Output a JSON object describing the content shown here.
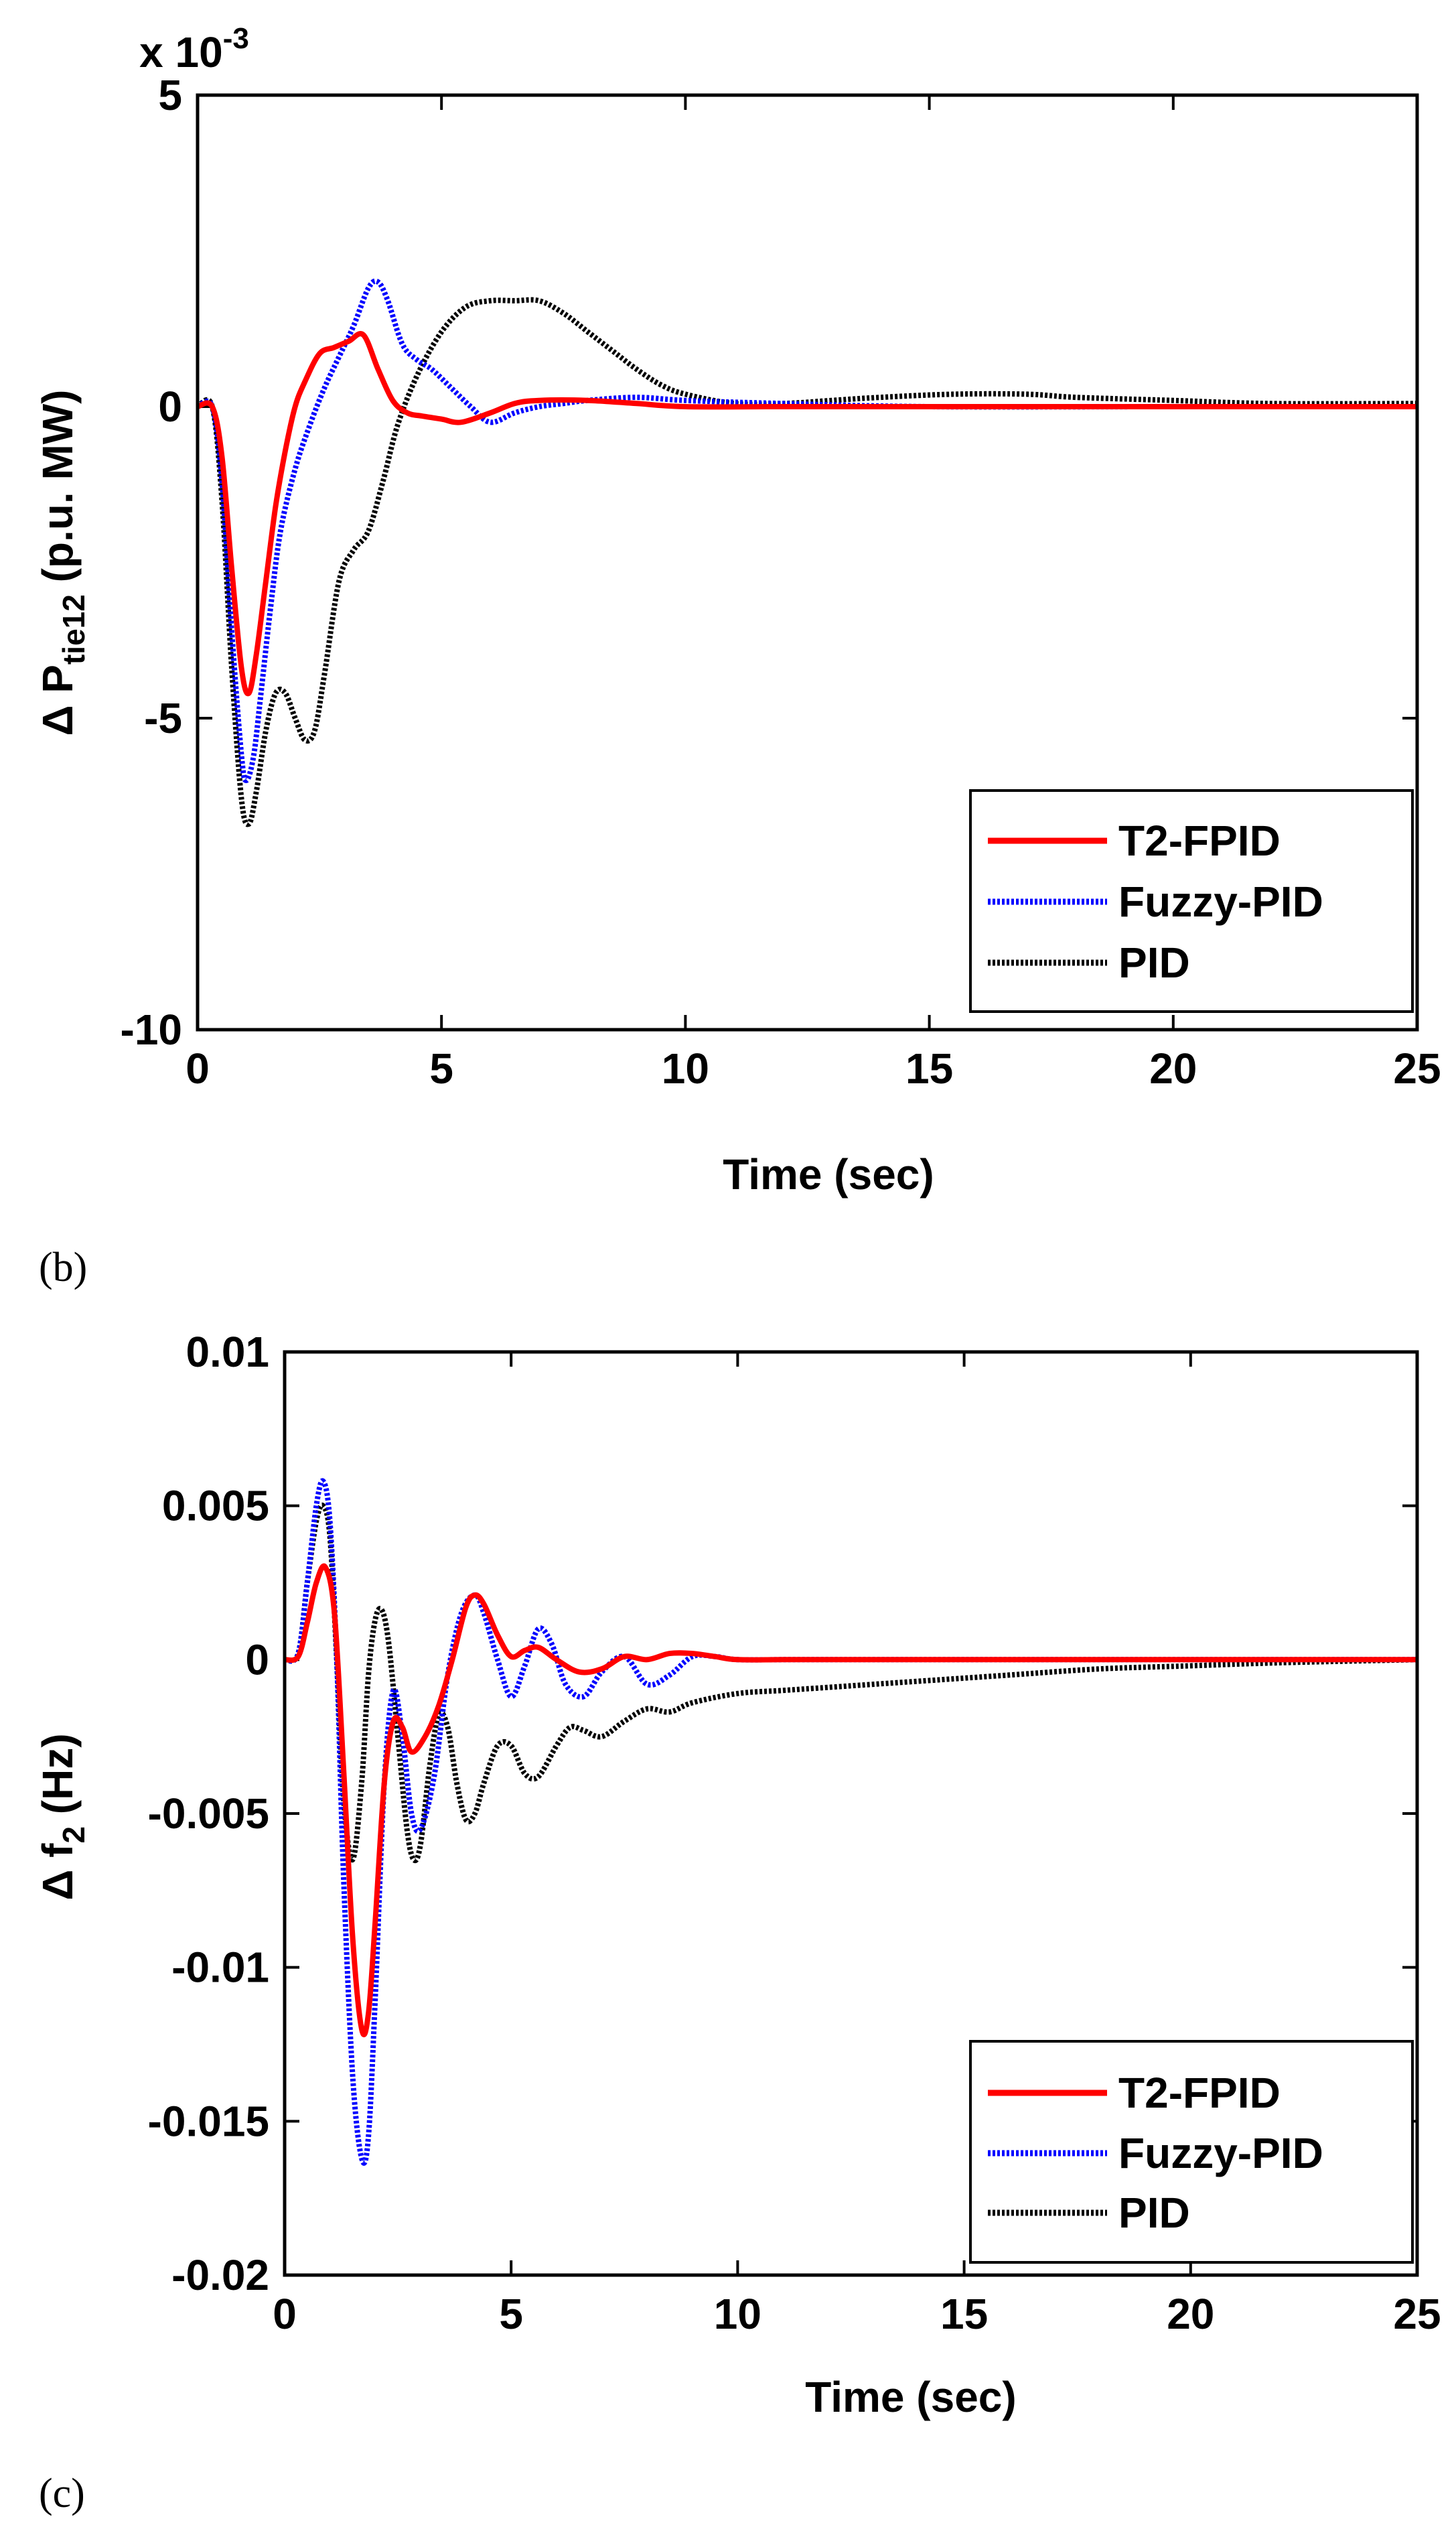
{
  "colors": {
    "t2fpid": "#ff0000",
    "fuzzy_pid": "#0000ff",
    "pid": "#000000"
  },
  "chart_data": [
    {
      "type": "line",
      "panel": "(b)",
      "caption": "(b)",
      "exponent_label": "x 10",
      "exponent_power": "-3",
      "ylabel_prefix": "Δ P",
      "ylabel_sub": "tie12",
      "ylabel_suffix": " (p.u. MW)",
      "xlabel": "Time (sec)",
      "xlim": [
        0,
        25
      ],
      "ylim": [
        -10,
        5
      ],
      "xticks": [
        0,
        5,
        10,
        15,
        20,
        25
      ],
      "xtick_labels": [
        "0",
        "5",
        "10",
        "15",
        "20",
        "25"
      ],
      "yticks": [
        -10,
        -5,
        0,
        5
      ],
      "ytick_labels": [
        "-10",
        "-5",
        "0",
        "5"
      ],
      "legend": [
        "T2-FPID",
        "Fuzzy-PID",
        "PID"
      ],
      "legend_position": "bottom-right",
      "series": [
        {
          "name": "T2-FPID",
          "x": [
            0,
            0.3,
            0.5,
            0.7,
            0.9,
            1.05,
            1.2,
            1.4,
            1.6,
            1.8,
            2.0,
            2.2,
            2.5,
            2.8,
            3.1,
            3.4,
            3.7,
            4.0,
            4.3,
            4.6,
            5.0,
            5.4,
            6.0,
            6.5,
            7.0,
            8.0,
            9.0,
            10.0,
            12.0,
            15.0,
            20.0,
            25.0
          ],
          "y": [
            0,
            0,
            -0.8,
            -2.6,
            -4.2,
            -4.6,
            -4.0,
            -2.8,
            -1.6,
            -0.7,
            0.0,
            0.4,
            0.85,
            0.95,
            1.05,
            1.15,
            0.6,
            0.1,
            -0.1,
            -0.15,
            -0.2,
            -0.25,
            -0.1,
            0.05,
            0.1,
            0.1,
            0.05,
            0.0,
            0.0,
            0.0,
            0.0,
            0.0
          ]
        },
        {
          "name": "Fuzzy-PID",
          "x": [
            0,
            0.3,
            0.5,
            0.7,
            0.9,
            1.0,
            1.15,
            1.3,
            1.5,
            1.7,
            2.0,
            2.3,
            2.6,
            2.9,
            3.2,
            3.5,
            3.7,
            3.9,
            4.2,
            4.5,
            4.8,
            5.2,
            5.6,
            6.0,
            6.5,
            7.0,
            7.5,
            8.0,
            9.0,
            10.0,
            12.0,
            15.0,
            20.0,
            25.0
          ],
          "y": [
            0,
            0,
            -1.2,
            -3.6,
            -5.6,
            -6.0,
            -5.6,
            -4.6,
            -3.2,
            -2.0,
            -1.0,
            -0.3,
            0.3,
            0.8,
            1.3,
            1.9,
            2.0,
            1.7,
            1.0,
            0.75,
            0.6,
            0.3,
            0.0,
            -0.25,
            -0.1,
            0.0,
            0.05,
            0.1,
            0.15,
            0.1,
            0.05,
            0.0,
            0.0,
            0.0
          ]
        },
        {
          "name": "PID",
          "x": [
            0,
            0.3,
            0.5,
            0.7,
            0.9,
            1.05,
            1.2,
            1.4,
            1.6,
            1.8,
            2.0,
            2.2,
            2.4,
            2.6,
            2.9,
            3.2,
            3.5,
            3.8,
            4.1,
            4.5,
            5.0,
            5.5,
            6.0,
            6.5,
            7.0,
            7.5,
            8.0,
            8.5,
            9.0,
            9.5,
            10.0,
            11.0,
            12.0,
            13.0,
            14.0,
            15.5,
            17.0,
            18.0,
            20.0,
            22.0,
            25.0
          ],
          "y": [
            0,
            0,
            -1.5,
            -4.2,
            -6.3,
            -6.7,
            -6.2,
            -5.2,
            -4.6,
            -4.6,
            -5.0,
            -5.35,
            -5.2,
            -4.3,
            -2.8,
            -2.3,
            -2.0,
            -1.2,
            -0.3,
            0.5,
            1.2,
            1.6,
            1.7,
            1.7,
            1.7,
            1.5,
            1.2,
            0.9,
            0.6,
            0.35,
            0.2,
            0.05,
            0.05,
            0.1,
            0.15,
            0.2,
            0.2,
            0.15,
            0.1,
            0.05,
            0.05
          ]
        }
      ]
    },
    {
      "type": "line",
      "panel": "(c)",
      "caption": "(c)",
      "ylabel_prefix": "Δ f",
      "ylabel_sub": "2",
      "ylabel_suffix": " (Hz)",
      "xlabel": "Time (sec)",
      "xlim": [
        0,
        25
      ],
      "ylim": [
        -0.02,
        0.01
      ],
      "xticks": [
        0,
        5,
        10,
        15,
        20,
        25
      ],
      "xtick_labels": [
        "0",
        "5",
        "10",
        "15",
        "20",
        "25"
      ],
      "yticks": [
        -0.02,
        -0.015,
        -0.01,
        -0.005,
        0,
        0.005,
        0.01
      ],
      "ytick_labels": [
        "-0.02",
        "-0.015",
        "-0.01",
        "-0.005",
        "0",
        "0.005",
        "0.01"
      ],
      "legend": [
        "T2-FPID",
        "Fuzzy-PID",
        "PID"
      ],
      "legend_position": "bottom-right",
      "series": [
        {
          "name": "T2-FPID",
          "x": [
            0,
            0.3,
            0.5,
            0.7,
            0.9,
            1.1,
            1.3,
            1.5,
            1.7,
            1.85,
            2.0,
            2.2,
            2.4,
            2.6,
            2.8,
            3.1,
            3.4,
            3.7,
            4.0,
            4.2,
            4.4,
            4.7,
            5.0,
            5.3,
            5.6,
            6.0,
            6.5,
            7.0,
            7.5,
            8.0,
            8.5,
            9.0,
            9.5,
            10.0,
            11.0,
            12.0,
            15.0,
            20.0,
            25.0
          ],
          "y": [
            0,
            0.0001,
            0.0012,
            0.0025,
            0.003,
            0.0015,
            -0.0035,
            -0.009,
            -0.012,
            -0.0115,
            -0.0085,
            -0.004,
            -0.002,
            -0.0022,
            -0.003,
            -0.0025,
            -0.0015,
            0.0,
            0.0017,
            0.0021,
            0.0018,
            0.0008,
            0.0001,
            0.0003,
            0.0004,
            0.0,
            -0.0004,
            -0.0003,
            0.0001,
            0.0,
            0.0002,
            0.0002,
            0.0001,
            0.0,
            0.0,
            0.0,
            0.0,
            0.0,
            0.0
          ]
        },
        {
          "name": "Fuzzy-PID",
          "x": [
            0,
            0.3,
            0.5,
            0.7,
            0.85,
            1.0,
            1.15,
            1.3,
            1.5,
            1.7,
            1.85,
            2.0,
            2.2,
            2.4,
            2.6,
            2.8,
            3.0,
            3.3,
            3.6,
            3.9,
            4.2,
            4.4,
            4.7,
            5.0,
            5.3,
            5.6,
            5.9,
            6.2,
            6.6,
            7.0,
            7.5,
            8.0,
            8.5,
            9.0,
            9.5,
            10.0,
            11.0,
            12.0,
            15.0,
            20.0,
            25.0
          ],
          "y": [
            0,
            0.0002,
            0.0025,
            0.005,
            0.0058,
            0.0045,
            0.0,
            -0.007,
            -0.0135,
            -0.0162,
            -0.0155,
            -0.011,
            -0.004,
            -0.001,
            -0.0025,
            -0.005,
            -0.0055,
            -0.0038,
            -0.0005,
            0.0015,
            0.0021,
            0.0015,
            0.0,
            -0.0012,
            -0.0002,
            0.001,
            0.0005,
            -0.0008,
            -0.0012,
            -0.0004,
            0.0001,
            -0.0008,
            -0.0005,
            0.0001,
            0.0001,
            0.0,
            0.0,
            0.0,
            0.0,
            0.0,
            0.0
          ]
        },
        {
          "name": "PID",
          "x": [
            0,
            0.3,
            0.5,
            0.7,
            0.85,
            1.0,
            1.15,
            1.3,
            1.5,
            1.7,
            1.85,
            2.0,
            2.15,
            2.3,
            2.5,
            2.7,
            2.85,
            3.0,
            3.2,
            3.4,
            3.6,
            3.8,
            4.0,
            4.2,
            4.4,
            4.7,
            5.0,
            5.3,
            5.6,
            6.0,
            6.3,
            6.6,
            7.0,
            7.5,
            8.0,
            8.5,
            9.0,
            10.0,
            11.0,
            12.0,
            14.0,
            16.0,
            18.0,
            20.0,
            22.0,
            25.0
          ],
          "y": [
            0,
            0.0002,
            0.0025,
            0.0045,
            0.005,
            0.004,
            0.0,
            -0.0045,
            -0.0065,
            -0.004,
            -0.0005,
            0.0013,
            0.0016,
            0.0005,
            -0.0025,
            -0.0055,
            -0.0065,
            -0.006,
            -0.0035,
            -0.0018,
            -0.0022,
            -0.004,
            -0.0052,
            -0.005,
            -0.004,
            -0.0028,
            -0.0028,
            -0.0037,
            -0.0038,
            -0.0028,
            -0.0022,
            -0.0023,
            -0.0025,
            -0.002,
            -0.0016,
            -0.0017,
            -0.0014,
            -0.0011,
            -0.001,
            -0.0009,
            -0.0007,
            -0.0005,
            -0.0003,
            -0.0002,
            -0.0001,
            0.0
          ]
        }
      ]
    }
  ]
}
